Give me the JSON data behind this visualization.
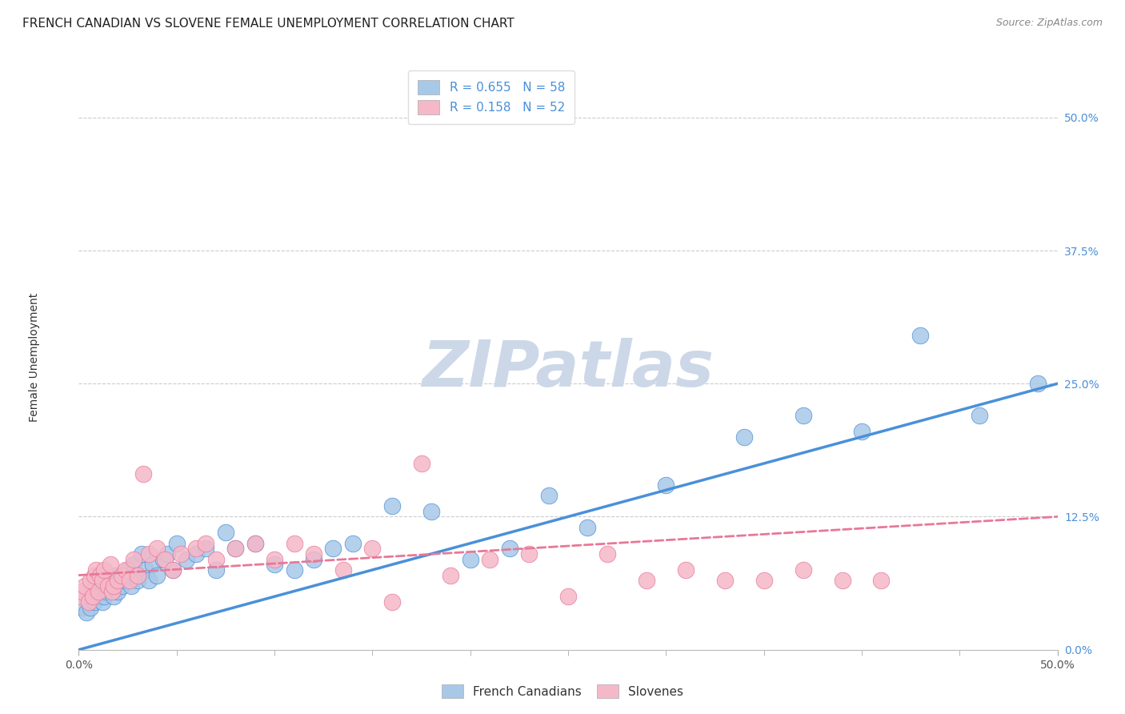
{
  "title": "FRENCH CANADIAN VS SLOVENE FEMALE UNEMPLOYMENT CORRELATION CHART",
  "source": "Source: ZipAtlas.com",
  "ylabel": "Female Unemployment",
  "xlim": [
    0.0,
    0.5
  ],
  "ylim": [
    0.0,
    0.55
  ],
  "ytick_labels": [
    "0.0%",
    "12.5%",
    "25.0%",
    "37.5%",
    "50.0%"
  ],
  "ytick_values": [
    0.0,
    0.125,
    0.25,
    0.375,
    0.5
  ],
  "french_R": 0.655,
  "french_N": 58,
  "slovene_R": 0.158,
  "slovene_N": 52,
  "french_color": "#a8c8e8",
  "slovene_color": "#f5b8c8",
  "french_line_color": "#4a90d9",
  "slovene_line_color": "#e87898",
  "background_color": "#ffffff",
  "watermark_color": "#ccd8e8",
  "french_x": [
    0.002,
    0.004,
    0.005,
    0.006,
    0.007,
    0.008,
    0.009,
    0.01,
    0.011,
    0.012,
    0.013,
    0.014,
    0.015,
    0.016,
    0.018,
    0.019,
    0.02,
    0.022,
    0.023,
    0.024,
    0.025,
    0.027,
    0.028,
    0.03,
    0.032,
    0.034,
    0.036,
    0.038,
    0.04,
    0.043,
    0.045,
    0.048,
    0.05,
    0.055,
    0.06,
    0.065,
    0.07,
    0.075,
    0.08,
    0.09,
    0.1,
    0.11,
    0.12,
    0.13,
    0.14,
    0.16,
    0.18,
    0.2,
    0.22,
    0.24,
    0.26,
    0.3,
    0.34,
    0.37,
    0.4,
    0.43,
    0.46,
    0.49
  ],
  "french_y": [
    0.04,
    0.035,
    0.05,
    0.04,
    0.055,
    0.045,
    0.06,
    0.05,
    0.055,
    0.045,
    0.05,
    0.055,
    0.06,
    0.065,
    0.05,
    0.07,
    0.055,
    0.06,
    0.065,
    0.07,
    0.075,
    0.06,
    0.08,
    0.065,
    0.09,
    0.075,
    0.065,
    0.08,
    0.07,
    0.085,
    0.09,
    0.075,
    0.1,
    0.085,
    0.09,
    0.095,
    0.075,
    0.11,
    0.095,
    0.1,
    0.08,
    0.075,
    0.085,
    0.095,
    0.1,
    0.135,
    0.13,
    0.085,
    0.095,
    0.145,
    0.115,
    0.155,
    0.2,
    0.22,
    0.205,
    0.295,
    0.22,
    0.25
  ],
  "slovene_x": [
    0.001,
    0.002,
    0.003,
    0.005,
    0.006,
    0.007,
    0.008,
    0.009,
    0.01,
    0.011,
    0.012,
    0.013,
    0.015,
    0.016,
    0.017,
    0.018,
    0.02,
    0.022,
    0.024,
    0.026,
    0.028,
    0.03,
    0.033,
    0.036,
    0.04,
    0.044,
    0.048,
    0.052,
    0.06,
    0.065,
    0.07,
    0.08,
    0.09,
    0.1,
    0.11,
    0.12,
    0.135,
    0.15,
    0.16,
    0.175,
    0.19,
    0.21,
    0.23,
    0.25,
    0.27,
    0.29,
    0.31,
    0.33,
    0.35,
    0.37,
    0.39,
    0.41
  ],
  "slovene_y": [
    0.05,
    0.055,
    0.06,
    0.045,
    0.065,
    0.05,
    0.07,
    0.075,
    0.055,
    0.07,
    0.065,
    0.075,
    0.06,
    0.08,
    0.055,
    0.06,
    0.065,
    0.07,
    0.075,
    0.065,
    0.085,
    0.07,
    0.165,
    0.09,
    0.095,
    0.085,
    0.075,
    0.09,
    0.095,
    0.1,
    0.085,
    0.095,
    0.1,
    0.085,
    0.1,
    0.09,
    0.075,
    0.095,
    0.045,
    0.175,
    0.07,
    0.085,
    0.09,
    0.05,
    0.09,
    0.065,
    0.075,
    0.065,
    0.065,
    0.075,
    0.065,
    0.065
  ],
  "french_line_x0": 0.0,
  "french_line_y0": 0.0,
  "french_line_x1": 0.5,
  "french_line_y1": 0.25,
  "slovene_line_x0": 0.0,
  "slovene_line_y0": 0.07,
  "slovene_line_x1": 0.5,
  "slovene_line_y1": 0.125,
  "title_fontsize": 11,
  "axis_label_fontsize": 10,
  "tick_fontsize": 10,
  "legend_fontsize": 11,
  "source_fontsize": 9
}
